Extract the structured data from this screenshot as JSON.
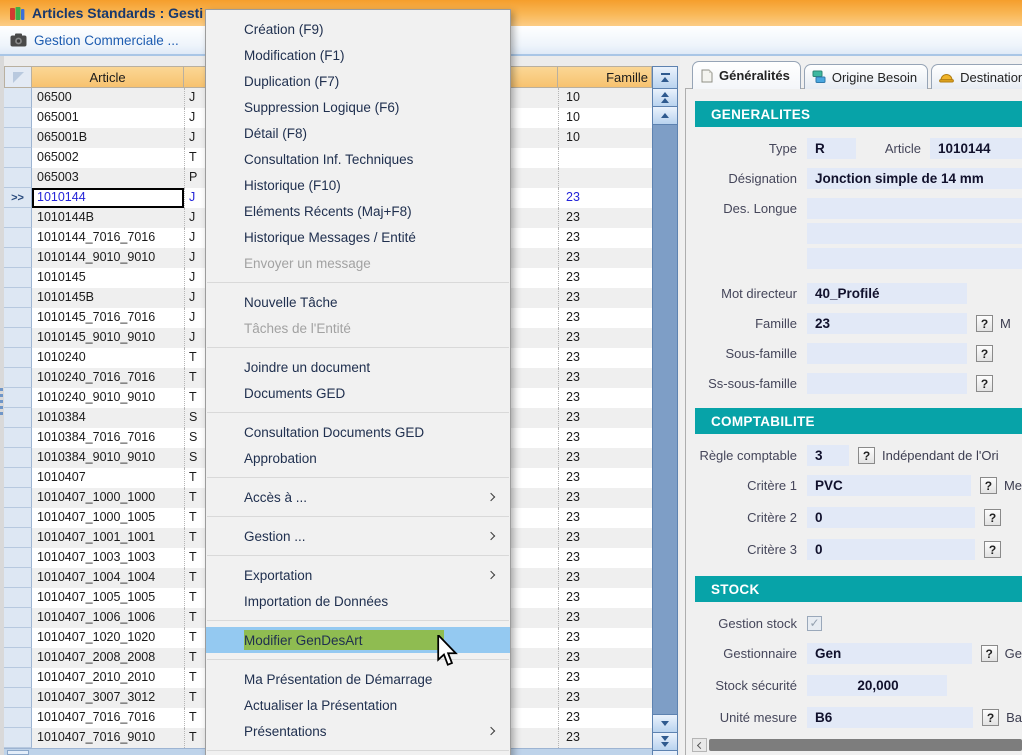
{
  "window": {
    "title": "Articles Standards : Gesti"
  },
  "toolbar": {
    "label": "Gestion Commerciale ..."
  },
  "table": {
    "headers": {
      "article": "Article",
      "famille": "Famille"
    },
    "selected_row_marker": ">>",
    "rows": [
      {
        "article": "06500",
        "frag": "J",
        "famille": "10"
      },
      {
        "article": "065001",
        "frag": "J",
        "famille": "10"
      },
      {
        "article": "065001B",
        "frag": "J",
        "famille": "10"
      },
      {
        "article": "065002",
        "frag": "T",
        "famille": ""
      },
      {
        "article": "065003",
        "frag": "P",
        "famille": ""
      },
      {
        "article": "1010144",
        "frag": "J",
        "famille": "23",
        "selected": true
      },
      {
        "article": "1010144B",
        "frag": "J",
        "famille": "23"
      },
      {
        "article": "1010144_7016_7016",
        "frag": "J",
        "famille": "23"
      },
      {
        "article": "1010144_9010_9010",
        "frag": "J",
        "famille": "23"
      },
      {
        "article": "1010145",
        "frag": "J",
        "famille": "23"
      },
      {
        "article": "1010145B",
        "frag": "J",
        "famille": "23"
      },
      {
        "article": "1010145_7016_7016",
        "frag": "J",
        "famille": "23"
      },
      {
        "article": "1010145_9010_9010",
        "frag": "J",
        "famille": "23"
      },
      {
        "article": "1010240",
        "frag": "T",
        "famille": "23"
      },
      {
        "article": "1010240_7016_7016",
        "frag": "T",
        "famille": "23"
      },
      {
        "article": "1010240_9010_9010",
        "frag": "T",
        "famille": "23"
      },
      {
        "article": "1010384",
        "frag": "S",
        "famille": "23"
      },
      {
        "article": "1010384_7016_7016",
        "frag": "S",
        "famille": "23"
      },
      {
        "article": "1010384_9010_9010",
        "frag": "S",
        "famille": "23"
      },
      {
        "article": "1010407",
        "frag": "T",
        "famille": "23"
      },
      {
        "article": "1010407_1000_1000",
        "frag": "T",
        "famille": "23"
      },
      {
        "article": "1010407_1000_1005",
        "frag": "T",
        "famille": "23"
      },
      {
        "article": "1010407_1001_1001",
        "frag": "T",
        "famille": "23"
      },
      {
        "article": "1010407_1003_1003",
        "frag": "T",
        "famille": "23"
      },
      {
        "article": "1010407_1004_1004",
        "frag": "T",
        "famille": "23"
      },
      {
        "article": "1010407_1005_1005",
        "frag": "T",
        "famille": "23"
      },
      {
        "article": "1010407_1006_1006",
        "frag": "T",
        "famille": "23"
      },
      {
        "article": "1010407_1020_1020",
        "frag": "T",
        "famille": "23"
      },
      {
        "article": "1010407_2008_2008",
        "frag": "T",
        "famille": "23"
      },
      {
        "article": "1010407_2010_2010",
        "frag": "T",
        "famille": "23"
      },
      {
        "article": "1010407_3007_3012",
        "frag": "T",
        "famille": "23"
      },
      {
        "article": "1010407_7016_7016",
        "frag": "T",
        "famille": "23"
      },
      {
        "article": "1010407_7016_9010",
        "frag": "T",
        "famille": "23"
      }
    ]
  },
  "context_menu": {
    "items": [
      {
        "label": "Création (F9)"
      },
      {
        "label": "Modification (F1)"
      },
      {
        "label": "Duplication (F7)"
      },
      {
        "label": "Suppression Logique (F6)"
      },
      {
        "label": "Détail (F8)"
      },
      {
        "label": "Consultation Inf. Techniques"
      },
      {
        "label": "Historique (F10)"
      },
      {
        "label": "Eléments Récents (Maj+F8)"
      },
      {
        "label": "Historique Messages / Entité"
      },
      {
        "label": "Envoyer un message",
        "disabled": true
      },
      {
        "separator": true
      },
      {
        "label": "Nouvelle Tâche"
      },
      {
        "label": "Tâches de l'Entité",
        "disabled": true
      },
      {
        "separator": true
      },
      {
        "label": "Joindre un document"
      },
      {
        "label": "Documents GED"
      },
      {
        "separator": true
      },
      {
        "label": "Consultation Documents GED"
      },
      {
        "label": "Approbation"
      },
      {
        "separator": true
      },
      {
        "label": "Accès à ...",
        "submenu": true
      },
      {
        "separator": true
      },
      {
        "label": "Gestion ...",
        "submenu": true
      },
      {
        "separator": true
      },
      {
        "label": "Exportation",
        "submenu": true
      },
      {
        "label": "Importation de Données"
      },
      {
        "separator": true
      },
      {
        "label": "Modifier GenDesArt",
        "highlighted": true
      },
      {
        "separator": true
      },
      {
        "label": "Ma Présentation de Démarrage"
      },
      {
        "label": "Actualiser la Présentation"
      },
      {
        "label": "Présentations",
        "submenu": true
      },
      {
        "separator": true
      }
    ]
  },
  "panel": {
    "tabs": [
      {
        "label": "Généralités"
      },
      {
        "label": "Origine Besoin"
      },
      {
        "label": "Destination"
      }
    ],
    "help_button": "?",
    "generalites": {
      "title": "GENERALITES",
      "type_label": "Type",
      "type_value": "R",
      "article_label": "Article",
      "article_value": "1010144",
      "designation_label": "Désignation",
      "designation_value": "Jonction simple de 14 mm",
      "des_longue_label": "Des. Longue",
      "mot_directeur_label": "Mot directeur",
      "mot_directeur_value": "40_Profilé",
      "famille_label": "Famille",
      "famille_value": "23",
      "famille_suffix": "M",
      "sous_famille_label": "Sous-famille",
      "sous_famille_value": "",
      "ss_sous_famille_label": "Ss-sous-famille",
      "ss_sous_famille_value": ""
    },
    "comptabilite": {
      "title": "COMPTABILITE",
      "regle_label": "Règle comptable",
      "regle_value": "3",
      "regle_suffix": "Indépendant de l'Ori",
      "critere1_label": "Critère 1",
      "critere1_value": "PVC",
      "critere1_suffix": "Me",
      "critere2_label": "Critère 2",
      "critere2_value": "0",
      "critere3_label": "Critère 3",
      "critere3_value": "0"
    },
    "stock": {
      "title": "STOCK",
      "gestion_stock_label": "Gestion stock",
      "gestionnaire_label": "Gestionnaire",
      "gestionnaire_value": "Gen",
      "gestionnaire_suffix": "Ge",
      "stock_securite_label": "Stock sécurité",
      "stock_securite_value": "20,000",
      "unite_label": "Unité mesure",
      "unite_value": "B6",
      "unite_suffix": "Ba"
    }
  },
  "colors": {
    "accent_teal": "#07a3a8",
    "menu_highlight_blue": "#94c9f1",
    "menu_highlight_green": "#8fbc51",
    "selection_text_blue": "#2424d8",
    "header_orange": "#f7c26f",
    "titlebar_orange": "#f9b858"
  }
}
